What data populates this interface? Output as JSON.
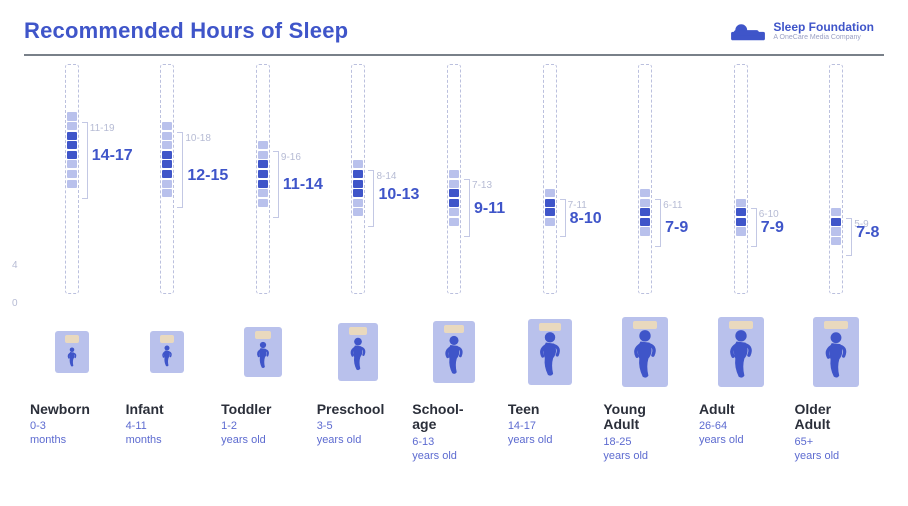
{
  "colors": {
    "title": "#3f55c9",
    "brand": "#3f55c9",
    "accentDark": "#3f55c9",
    "accentLight": "#b9c1ec",
    "extText": "#b6bbd4",
    "axis": "#b6bbd4",
    "bed": "#b9c1ec",
    "pillow": "#e9d9be",
    "sleeper": "#3f55c9",
    "cap": "#5d6bd0"
  },
  "header": {
    "title": "Recommended Hours of Sleep",
    "brandName": "Sleep Foundation",
    "brandTagline": "A OneCare Media Company"
  },
  "chart": {
    "type": "segmented-bar",
    "yAxis": {
      "min": 0,
      "max": 24,
      "ticks": [
        0,
        4
      ]
    },
    "segHeightPx": 8,
    "segGapPx": 1.5,
    "frameHeightPx": 230,
    "columns": [
      {
        "label": "Newborn",
        "age": "0-3\nmonths",
        "extRange": [
          11,
          19
        ],
        "recRange": [
          14,
          17
        ],
        "extText": "11-19",
        "recText": "14-17",
        "bedW": 34,
        "bedH": 42,
        "pillowW": 14,
        "sleepH": 20,
        "sleepTop": 16
      },
      {
        "label": "Infant",
        "age": "4-11\nmonths",
        "extRange": [
          10,
          18
        ],
        "recRange": [
          12,
          15
        ],
        "extText": "10-18",
        "recText": "12-15",
        "bedW": 34,
        "bedH": 42,
        "pillowW": 14,
        "sleepH": 22,
        "sleepTop": 14
      },
      {
        "label": "Toddler",
        "age": "1-2\nyears old",
        "extRange": [
          9,
          16
        ],
        "recRange": [
          11,
          14
        ],
        "extText": "9-16",
        "recText": "11-14",
        "bedW": 38,
        "bedH": 50,
        "pillowW": 16,
        "sleepH": 28,
        "sleepTop": 14
      },
      {
        "label": "Preschool",
        "age": "3-5\nyears old",
        "extRange": [
          8,
          14
        ],
        "recRange": [
          10,
          13
        ],
        "extText": "8-14",
        "recText": "10-13",
        "bedW": 40,
        "bedH": 58,
        "pillowW": 18,
        "sleepH": 34,
        "sleepTop": 14
      },
      {
        "label": "School-\nage",
        "age": "6-13\nyears old",
        "extRange": [
          7,
          13
        ],
        "recRange": [
          9,
          11
        ],
        "extText": "7-13",
        "recText": "9-11",
        "bedW": 42,
        "bedH": 62,
        "pillowW": 20,
        "sleepH": 40,
        "sleepTop": 14
      },
      {
        "label": "Teen",
        "age": "14-17\nyears old",
        "extRange": [
          7,
          11
        ],
        "recRange": [
          8,
          10
        ],
        "extText": "7-11",
        "recText": "8-10",
        "bedW": 44,
        "bedH": 66,
        "pillowW": 22,
        "sleepH": 46,
        "sleepTop": 12
      },
      {
        "label": "Young\nAdult",
        "age": "18-25\nyears old",
        "extRange": [
          6,
          11
        ],
        "recRange": [
          7,
          9
        ],
        "extText": "6-11",
        "recText": "7-9",
        "bedW": 46,
        "bedH": 70,
        "pillowW": 24,
        "sleepH": 50,
        "sleepTop": 12
      },
      {
        "label": "Adult",
        "age": "26-64\nyears old",
        "extRange": [
          6,
          10
        ],
        "recRange": [
          7,
          9
        ],
        "extText": "6-10",
        "recText": "7-9",
        "bedW": 46,
        "bedH": 70,
        "pillowW": 24,
        "sleepH": 50,
        "sleepTop": 12
      },
      {
        "label": "Older\nAdult",
        "age": "65+\nyears old",
        "extRange": [
          5,
          9
        ],
        "recRange": [
          7,
          8
        ],
        "extText": "5-9",
        "recText": "7-8",
        "bedW": 46,
        "bedH": 70,
        "pillowW": 24,
        "sleepH": 48,
        "sleepTop": 14
      }
    ]
  }
}
